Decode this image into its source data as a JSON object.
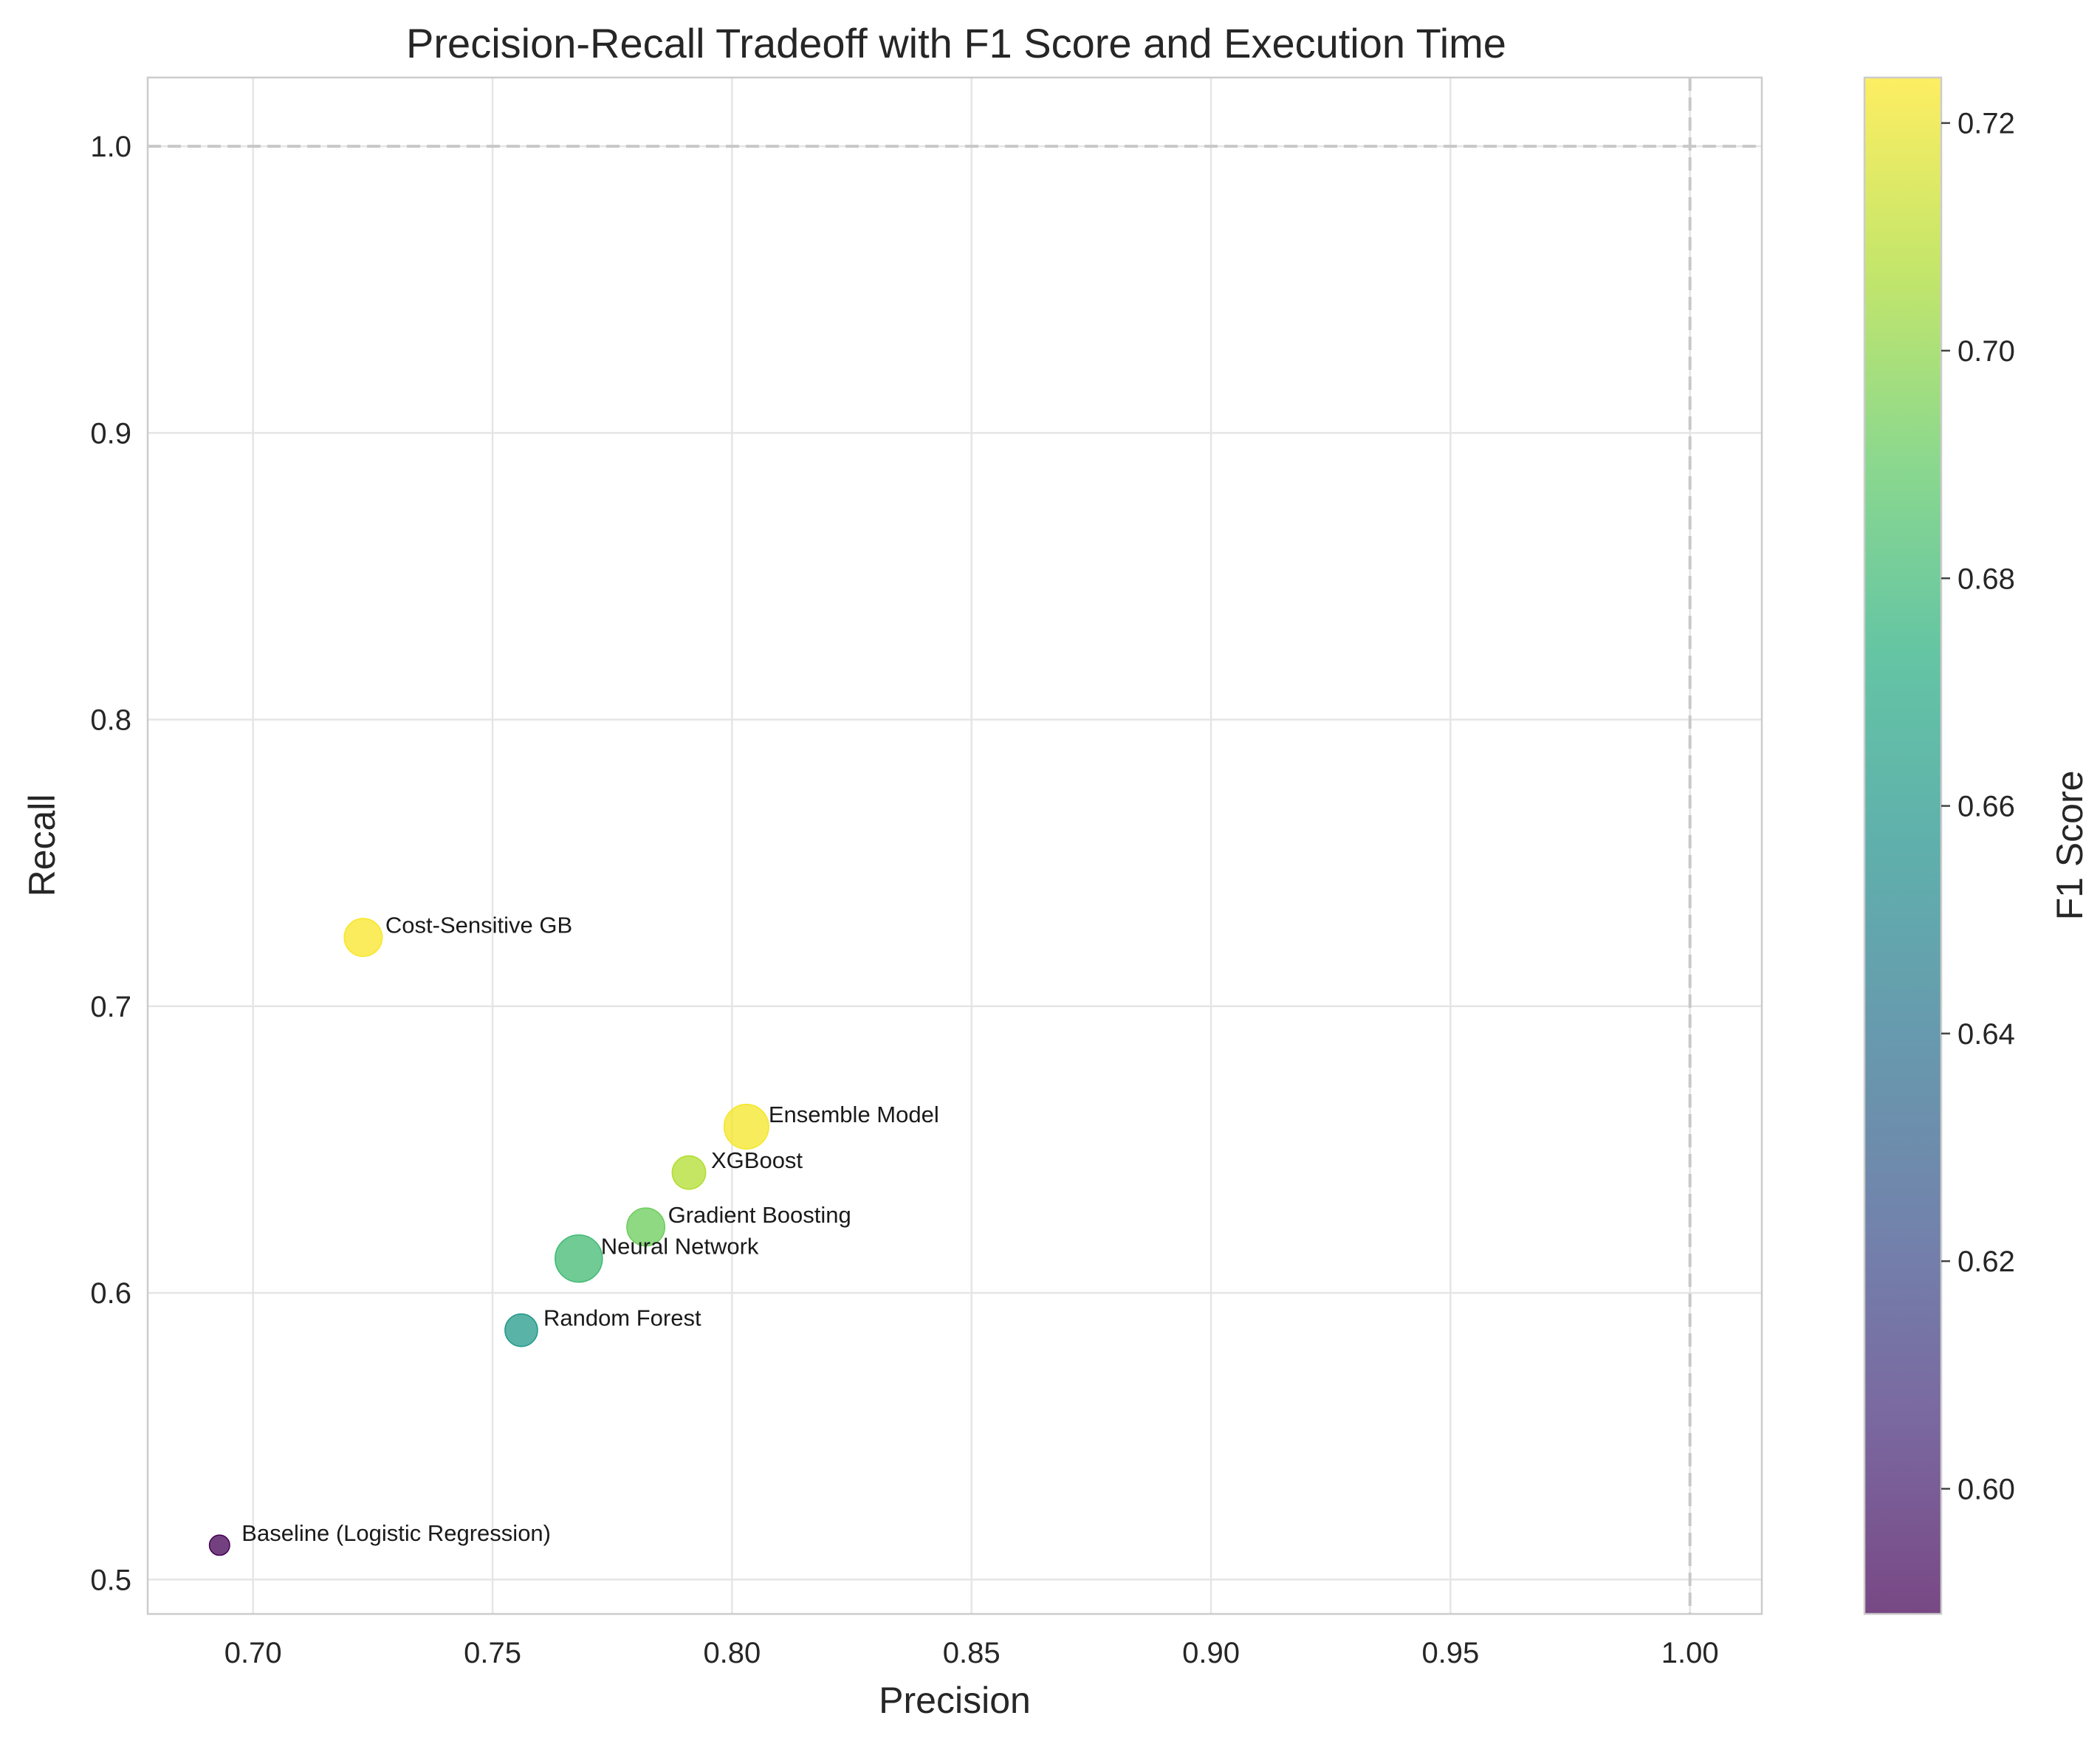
{
  "chart_data": {
    "type": "scatter",
    "title": "Precision-Recall Tradeoff with F1 Score and Execution Time",
    "xlabel": "Precision",
    "ylabel": "Recall",
    "xlim": [
      0.678,
      1.015
    ],
    "ylim": [
      0.488,
      1.024
    ],
    "xticks": [
      0.7,
      0.75,
      0.8,
      0.85,
      0.9,
      0.95,
      1.0
    ],
    "xtick_labels": [
      "0.70",
      "0.75",
      "0.80",
      "0.85",
      "0.90",
      "0.95",
      "1.00"
    ],
    "yticks": [
      0.5,
      0.6,
      0.7,
      0.8,
      0.9,
      1.0
    ],
    "ytick_labels": [
      "0.5",
      "0.6",
      "0.7",
      "0.8",
      "0.9",
      "1.0"
    ],
    "grid": true,
    "reference_lines": {
      "x": 1.0,
      "y": 1.0,
      "style": "dashed"
    },
    "colorbar": {
      "label": "F1 Score",
      "colormap": "viridis",
      "range": [
        0.589,
        0.724
      ],
      "ticks": [
        0.6,
        0.62,
        0.64,
        0.66,
        0.68,
        0.7,
        0.72
      ],
      "tick_labels": [
        "0.60",
        "0.62",
        "0.64",
        "0.66",
        "0.68",
        "0.70",
        "0.72"
      ]
    },
    "points": [
      {
        "label": "Baseline (Logistic Regression)",
        "precision": 0.693,
        "recall": 0.512,
        "f1": 0.589,
        "exec_time": 0.2
      },
      {
        "label": "Cost-Sensitive GB",
        "precision": 0.723,
        "recall": 0.724,
        "f1": 0.723,
        "exec_time": 1.9
      },
      {
        "label": "Random Forest",
        "precision": 0.756,
        "recall": 0.587,
        "f1": 0.661,
        "exec_time": 1.2
      },
      {
        "label": "Neural Network",
        "precision": 0.768,
        "recall": 0.612,
        "f1": 0.681,
        "exec_time": 3.5
      },
      {
        "label": "Gradient Boosting",
        "precision": 0.782,
        "recall": 0.623,
        "f1": 0.693,
        "exec_time": 1.9
      },
      {
        "label": "XGBoost",
        "precision": 0.791,
        "recall": 0.642,
        "f1": 0.708,
        "exec_time": 1.3
      },
      {
        "label": "Ensemble Model",
        "precision": 0.803,
        "recall": 0.658,
        "f1": 0.722,
        "exec_time": 3.0
      }
    ]
  }
}
